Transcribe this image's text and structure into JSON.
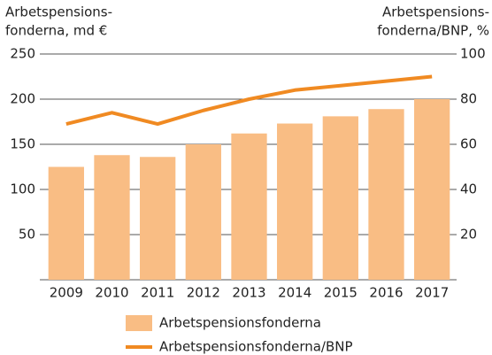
{
  "chart_data": {
    "type": "bar_line",
    "y_label": [
      "Arbetspensions-",
      "fonderna, md €"
    ],
    "y2_label": [
      "Arbetspensions-",
      "fonderna/BNP, %"
    ],
    "categories": [
      "2009",
      "2010",
      "2011",
      "2012",
      "2013",
      "2014",
      "2015",
      "2016",
      "2017"
    ],
    "series": [
      {
        "name": "Arbetspensionsfonderna",
        "type": "bar",
        "color": "#f9bd84",
        "values": [
          125,
          138,
          136,
          150,
          162,
          173,
          181,
          189,
          200
        ]
      },
      {
        "name": "Arbetspensionsfonderna/BNP",
        "type": "line",
        "axis": "y2",
        "color": "#f08a22",
        "values": [
          69,
          74,
          69,
          75,
          80,
          84,
          86,
          88,
          90
        ]
      }
    ],
    "ylim": [
      0,
      250
    ],
    "yticks": [
      50,
      100,
      150,
      200,
      250
    ],
    "y2lim": [
      0,
      100
    ],
    "y2ticks": [
      20,
      40,
      60,
      80,
      100
    ],
    "grid": true
  }
}
